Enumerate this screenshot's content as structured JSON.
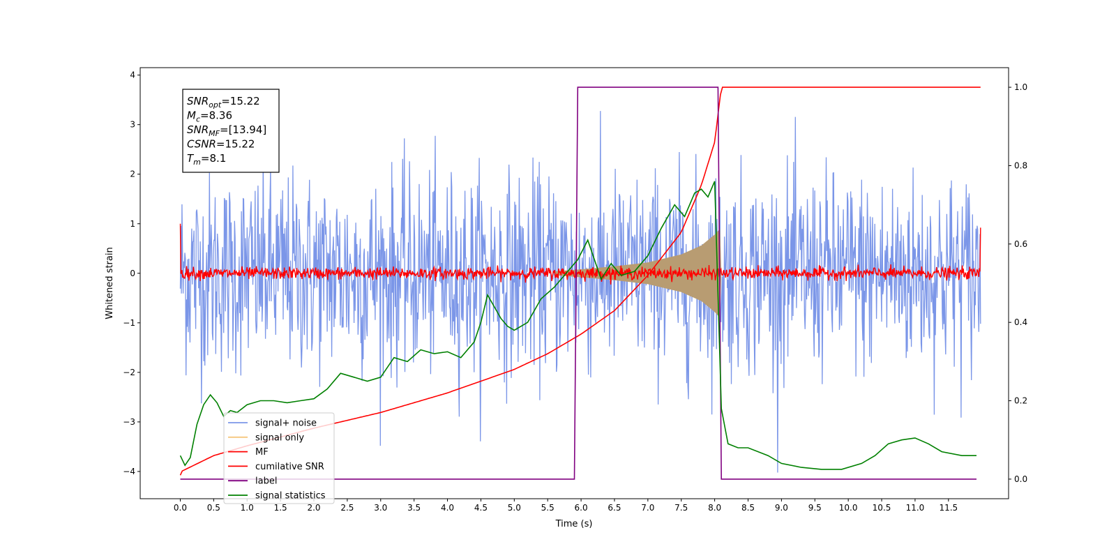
{
  "chart_data": {
    "type": "line",
    "xlabel": "Time (s)",
    "ylabel": "Whitened strain",
    "xlim": [
      -0.6,
      12.4
    ],
    "ylim": [
      -4.55,
      4.15
    ],
    "y2lim": [
      -0.05,
      1.05
    ],
    "xticks": [
      0.0,
      0.5,
      1.0,
      1.5,
      2.0,
      2.5,
      3.0,
      3.5,
      4.0,
      4.5,
      5.0,
      5.5,
      6.0,
      6.5,
      7.0,
      7.5,
      8.0,
      8.5,
      9.0,
      9.5,
      10.0,
      10.5,
      11.0,
      11.5
    ],
    "xtick_labels": [
      "0.0",
      "0.5",
      "1.0",
      "1.5",
      "2.0",
      "2.5",
      "3.0",
      "3.5",
      "4.0",
      "4.5",
      "5.0",
      "5.5",
      "6.0",
      "6.5",
      "7.0",
      "7.5",
      "8.0",
      "8.5",
      "9.0",
      "9.5",
      "10.0",
      "10.5",
      "11.0",
      "11.5"
    ],
    "yticks": [
      -4,
      -3,
      -2,
      -1,
      0,
      1,
      2,
      3,
      4
    ],
    "ytick_labels": [
      "−4",
      "−3",
      "−2",
      "−1",
      "0",
      "1",
      "2",
      "3",
      "4"
    ],
    "y2ticks": [
      0.0,
      0.2,
      0.4,
      0.6,
      0.8,
      1.0
    ],
    "y2tick_labels": [
      "0.0",
      "0.2",
      "0.4",
      "0.6",
      "0.8",
      "1.0"
    ],
    "grid": false,
    "legend_position": "lower-left",
    "annotation": {
      "lines": [
        {
          "main": "SNR",
          "sub": "opt",
          "rest": "=15.22"
        },
        {
          "main": "M",
          "sub": "c",
          "rest": "=8.36"
        },
        {
          "main": "SNR",
          "sub": "MF",
          "rest": "=[13.94]"
        },
        {
          "main": "CSNR",
          "sub": "",
          "rest": "=15.22"
        },
        {
          "main": "T",
          "sub": "m",
          "rest": "=8.1"
        }
      ]
    },
    "series": [
      {
        "name": "signal+ noise",
        "color": "#7b96e8",
        "axis": "left",
        "kind": "noise_band",
        "x_range": [
          0,
          11.98
        ],
        "amplitude_std": 1.0
      },
      {
        "name": "signal only",
        "color": "#f5c77e",
        "axis": "left",
        "kind": "chirp_envelope",
        "envelope": {
          "x": [
            5.6,
            6.0,
            6.5,
            7.0,
            7.5,
            7.8,
            8.0,
            8.08,
            8.1
          ],
          "y": [
            0.04,
            0.08,
            0.14,
            0.22,
            0.38,
            0.56,
            0.78,
            0.9,
            0.0
          ]
        }
      },
      {
        "name": "MF",
        "color": "#ff0000",
        "axis": "left",
        "kind": "noise_band",
        "x_range": [
          0,
          11.98
        ],
        "amplitude_std": 0.06,
        "endpoints": [
          1.0,
          0.92
        ]
      },
      {
        "name": "cumilative SNR",
        "color": "#ff0000",
        "axis": "right",
        "x": [
          0.0,
          0.02,
          0.5,
          1.0,
          2.0,
          3.0,
          4.0,
          5.0,
          5.5,
          6.0,
          6.5,
          7.0,
          7.5,
          7.8,
          8.0,
          8.1,
          8.15,
          11.98
        ],
        "y": [
          0.01,
          0.02,
          0.06,
          0.085,
          0.13,
          0.17,
          0.22,
          0.28,
          0.32,
          0.37,
          0.43,
          0.52,
          0.63,
          0.75,
          0.86,
          1.0,
          1.0,
          1.0
        ]
      },
      {
        "name": "label",
        "color": "#800080",
        "axis": "right",
        "x": [
          0.0,
          5.9,
          5.95,
          8.05,
          8.1,
          11.92
        ],
        "y": [
          0.0,
          0.0,
          1.0,
          1.0,
          0.0,
          0.0
        ]
      },
      {
        "name": "signal statistics",
        "color": "#008000",
        "axis": "right",
        "x": [
          0.0,
          0.07,
          0.15,
          0.25,
          0.35,
          0.45,
          0.55,
          0.65,
          0.75,
          0.85,
          1.0,
          1.2,
          1.4,
          1.6,
          1.8,
          2.0,
          2.2,
          2.4,
          2.6,
          2.8,
          3.0,
          3.2,
          3.4,
          3.6,
          3.8,
          4.0,
          4.2,
          4.4,
          4.5,
          4.6,
          4.8,
          4.9,
          5.0,
          5.2,
          5.4,
          5.6,
          5.8,
          5.95,
          6.1,
          6.3,
          6.45,
          6.6,
          6.8,
          7.0,
          7.2,
          7.4,
          7.55,
          7.7,
          7.8,
          7.9,
          8.0,
          8.1,
          8.2,
          8.35,
          8.5,
          8.8,
          9.0,
          9.3,
          9.6,
          9.9,
          10.2,
          10.4,
          10.6,
          10.8,
          11.0,
          11.2,
          11.4,
          11.7,
          11.92
        ],
        "y": [
          0.06,
          0.035,
          0.055,
          0.14,
          0.19,
          0.215,
          0.195,
          0.16,
          0.175,
          0.17,
          0.19,
          0.2,
          0.2,
          0.195,
          0.2,
          0.205,
          0.23,
          0.27,
          0.26,
          0.25,
          0.26,
          0.31,
          0.3,
          0.33,
          0.32,
          0.325,
          0.31,
          0.35,
          0.4,
          0.47,
          0.41,
          0.39,
          0.38,
          0.4,
          0.46,
          0.49,
          0.53,
          0.56,
          0.61,
          0.51,
          0.55,
          0.52,
          0.53,
          0.57,
          0.64,
          0.7,
          0.67,
          0.73,
          0.74,
          0.72,
          0.76,
          0.18,
          0.09,
          0.08,
          0.08,
          0.06,
          0.04,
          0.03,
          0.025,
          0.025,
          0.04,
          0.06,
          0.09,
          0.1,
          0.105,
          0.09,
          0.07,
          0.06,
          0.06
        ]
      }
    ]
  }
}
